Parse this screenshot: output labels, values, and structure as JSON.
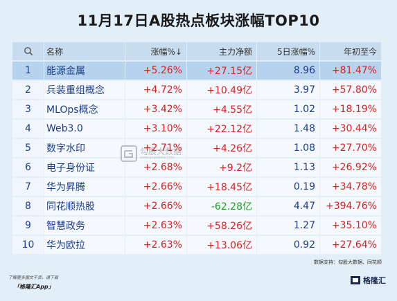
{
  "title": "11月17日A股热点板块涨幅TOP10",
  "header": {
    "col1_icon": "search-icon",
    "col2": "名称",
    "col3": "涨幅%↓",
    "col4": "主力净额",
    "col5": "5日涨幅%",
    "col6": "年初至今"
  },
  "rows": [
    {
      "rank": "1",
      "name": "能源金属",
      "change": "+5.26%",
      "net": "+27.15亿",
      "five": "8.96",
      "ytd": "+81.47%"
    },
    {
      "rank": "2",
      "name": "兵装重组概念",
      "change": "+4.72%",
      "net": "+10.49亿",
      "five": "3.97",
      "ytd": "+57.80%"
    },
    {
      "rank": "3",
      "name": "MLOps概念",
      "change": "+3.42%",
      "net": "+4.55亿",
      "five": "1.02",
      "ytd": "+18.19%"
    },
    {
      "rank": "4",
      "name": "Web3.0",
      "change": "+3.10%",
      "net": "+22.12亿",
      "five": "1.48",
      "ytd": "+30.44%"
    },
    {
      "rank": "5",
      "name": "数字水印",
      "change": "+2.71%",
      "net": "+4.26亿",
      "five": "1.08",
      "ytd": "+27.70%"
    },
    {
      "rank": "6",
      "name": "电子身份证",
      "change": "+2.68%",
      "net": "+9.2亿",
      "five": "1.13",
      "ytd": "+26.92%"
    },
    {
      "rank": "7",
      "name": "华为昇腾",
      "change": "+2.66%",
      "net": "+18.45亿",
      "five": "0.19",
      "ytd": "+34.78%"
    },
    {
      "rank": "8",
      "name": "同花顺热股",
      "change": "+2.66%",
      "net": "-62.28亿",
      "five": "4.47",
      "ytd": "+394.76%"
    },
    {
      "rank": "9",
      "name": "智慧政务",
      "change": "+2.63%",
      "net": "+58.26亿",
      "five": "1.27",
      "ytd": "+35.10%"
    },
    {
      "rank": "10",
      "name": "华为欧拉",
      "change": "+2.63%",
      "net": "+13.06亿",
      "five": "0.92",
      "ytd": "+27.64%"
    }
  ],
  "source": "数据支持：勾股大数据、同花顺",
  "footer_line1": "了解更多图文干货，请下载",
  "footer_line2": "「格隆汇App」",
  "logo_text": "格隆汇",
  "watermark_text": "勾股大数据",
  "watermark_sub": "www.gogudata.com",
  "colors": {
    "positive": "#d91f1f",
    "negative": "#19a019",
    "text": "#1c3e8a",
    "background": "#e2eef8"
  }
}
